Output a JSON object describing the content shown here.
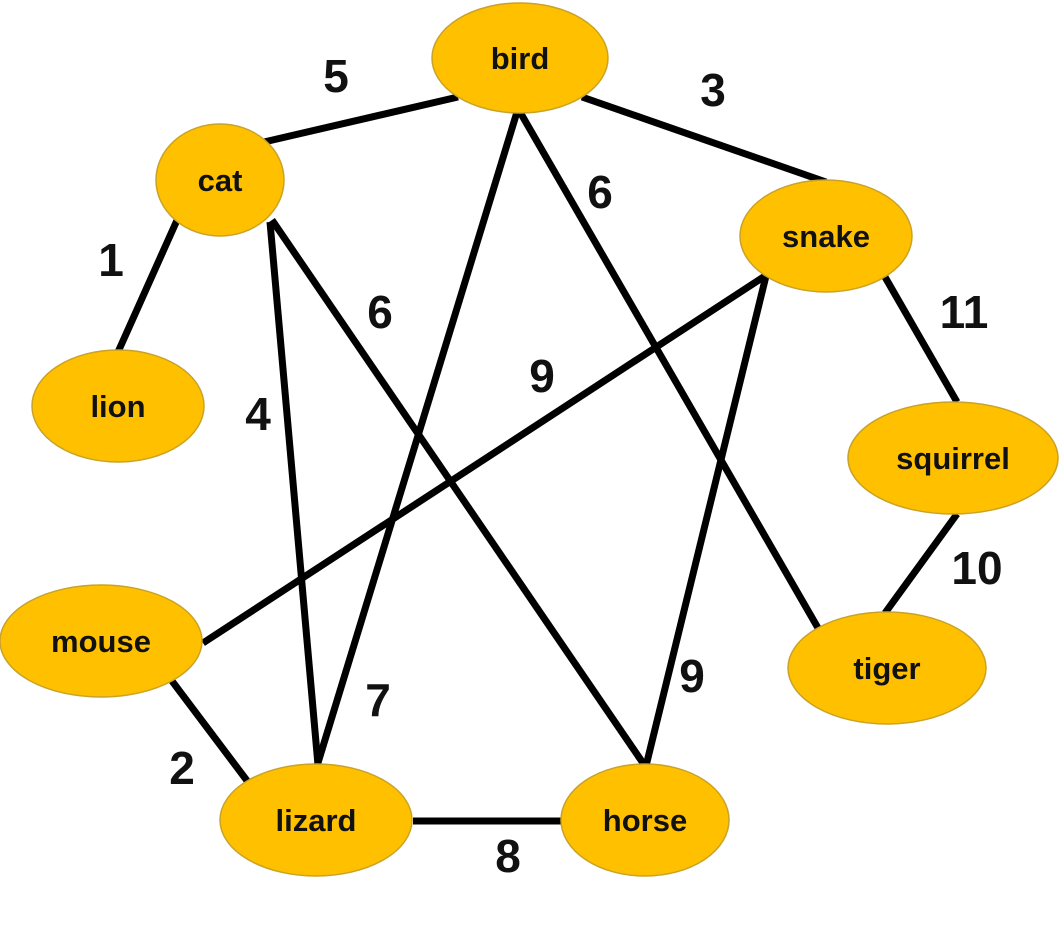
{
  "graph": {
    "node_fill": "#FFC000",
    "node_border": "#C9A227",
    "edge_color": "#000000",
    "nodes": [
      {
        "id": "bird",
        "label": "bird"
      },
      {
        "id": "cat",
        "label": "cat"
      },
      {
        "id": "snake",
        "label": "snake"
      },
      {
        "id": "lion",
        "label": "lion"
      },
      {
        "id": "squirrel",
        "label": "squirrel"
      },
      {
        "id": "mouse",
        "label": "mouse"
      },
      {
        "id": "tiger",
        "label": "tiger"
      },
      {
        "id": "lizard",
        "label": "lizard"
      },
      {
        "id": "horse",
        "label": "horse"
      }
    ],
    "edges": [
      {
        "from": "cat",
        "to": "bird",
        "weight": "5"
      },
      {
        "from": "bird",
        "to": "snake",
        "weight": "3"
      },
      {
        "from": "bird",
        "to": "tiger",
        "weight": "6"
      },
      {
        "from": "bird",
        "to": "lizard",
        "weight": "7"
      },
      {
        "from": "cat",
        "to": "lion",
        "weight": "1"
      },
      {
        "from": "cat",
        "to": "lizard",
        "weight": "4"
      },
      {
        "from": "cat",
        "to": "horse",
        "weight": "6"
      },
      {
        "from": "snake",
        "to": "mouse",
        "weight": "9"
      },
      {
        "from": "snake",
        "to": "horse",
        "weight": "9"
      },
      {
        "from": "snake",
        "to": "squirrel",
        "weight": "11"
      },
      {
        "from": "squirrel",
        "to": "tiger",
        "weight": "10"
      },
      {
        "from": "mouse",
        "to": "lizard",
        "weight": "2"
      },
      {
        "from": "lizard",
        "to": "horse",
        "weight": "8"
      }
    ]
  }
}
